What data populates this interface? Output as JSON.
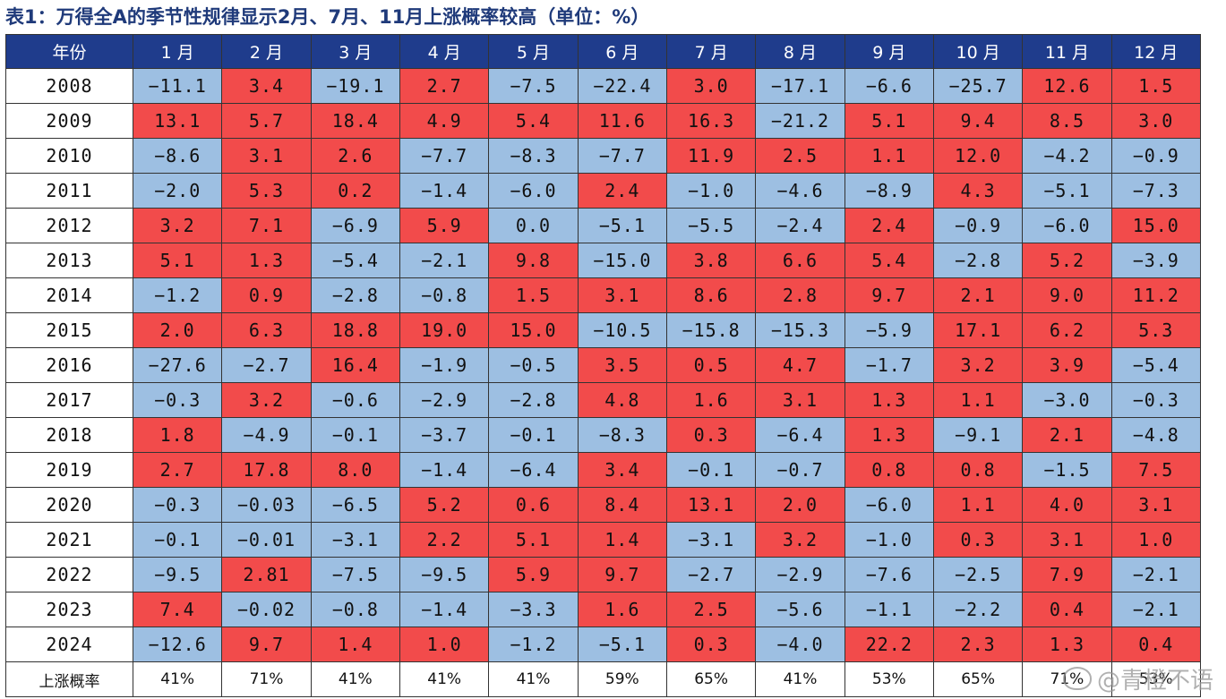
{
  "title": "表1：万得全A的季节性规律显示2月、7月、11月上涨概率较高（单位：%）",
  "header": [
    "年份",
    "1 月",
    "2 月",
    "3 月",
    "4 月",
    "5 月",
    "6 月",
    "7 月",
    "8 月",
    "9 月",
    "10 月",
    "11 月",
    "12 月"
  ],
  "rows": [
    {
      "year": "2008",
      "values": [
        "-11.1",
        "3.4",
        "-19.1",
        "2.7",
        "-7.5",
        "-22.4",
        "3.0",
        "-17.1",
        "-6.6",
        "-25.7",
        "12.6",
        "1.5"
      ]
    },
    {
      "year": "2009",
      "values": [
        "13.1",
        "5.7",
        "18.4",
        "4.9",
        "5.4",
        "11.6",
        "16.3",
        "-21.2",
        "5.1",
        "9.4",
        "8.5",
        "3.0"
      ]
    },
    {
      "year": "2010",
      "values": [
        "-8.6",
        "3.1",
        "2.6",
        "-7.7",
        "-8.3",
        "-7.7",
        "11.9",
        "2.5",
        "1.1",
        "12.0",
        "-4.2",
        "-0.9"
      ]
    },
    {
      "year": "2011",
      "values": [
        "-2.0",
        "5.3",
        "0.2",
        "-1.4",
        "-6.0",
        "2.4",
        "-1.0",
        "-4.6",
        "-8.9",
        "4.3",
        "-5.1",
        "-7.3"
      ]
    },
    {
      "year": "2012",
      "values": [
        "3.2",
        "7.1",
        "-6.9",
        "5.9",
        "0.0",
        "-5.1",
        "-5.5",
        "-2.4",
        "2.4",
        "-0.9",
        "-6.0",
        "15.0"
      ]
    },
    {
      "year": "2013",
      "values": [
        "5.1",
        "1.3",
        "-5.4",
        "-2.1",
        "9.8",
        "-15.0",
        "3.8",
        "6.6",
        "5.4",
        "-2.8",
        "5.2",
        "-3.9"
      ]
    },
    {
      "year": "2014",
      "values": [
        "-1.2",
        "0.9",
        "-2.8",
        "-0.8",
        "1.5",
        "3.1",
        "8.6",
        "2.8",
        "9.7",
        "2.1",
        "9.0",
        "11.2"
      ]
    },
    {
      "year": "2015",
      "values": [
        "2.0",
        "6.3",
        "18.8",
        "19.0",
        "15.0",
        "-10.5",
        "-15.8",
        "-15.3",
        "-5.9",
        "17.1",
        "6.2",
        "5.3"
      ]
    },
    {
      "year": "2016",
      "values": [
        "-27.6",
        "-2.7",
        "16.4",
        "-1.9",
        "-0.5",
        "3.5",
        "0.5",
        "4.7",
        "-1.7",
        "3.2",
        "3.9",
        "-5.4"
      ]
    },
    {
      "year": "2017",
      "values": [
        "-0.3",
        "3.2",
        "-0.6",
        "-2.9",
        "-2.8",
        "4.8",
        "1.6",
        "3.1",
        "1.3",
        "1.1",
        "-3.0",
        "-0.3"
      ]
    },
    {
      "year": "2018",
      "values": [
        "1.8",
        "-4.9",
        "-0.1",
        "-3.7",
        "-0.1",
        "-8.3",
        "0.3",
        "-6.4",
        "1.3",
        "-9.1",
        "2.1",
        "-4.8"
      ]
    },
    {
      "year": "2019",
      "values": [
        "2.7",
        "17.8",
        "8.0",
        "-1.4",
        "-6.4",
        "3.4",
        "-0.1",
        "-0.7",
        "0.8",
        "0.8",
        "-1.5",
        "7.5"
      ]
    },
    {
      "year": "2020",
      "values": [
        "-0.3",
        "-0.03",
        "-6.5",
        "5.2",
        "0.6",
        "8.4",
        "13.1",
        "2.0",
        "-6.0",
        "1.1",
        "4.0",
        "3.1"
      ]
    },
    {
      "year": "2021",
      "values": [
        "-0.1",
        "-0.01",
        "-3.1",
        "2.2",
        "5.1",
        "1.4",
        "-3.1",
        "3.2",
        "-1.0",
        "0.3",
        "3.1",
        "1.0"
      ]
    },
    {
      "year": "2022",
      "values": [
        "-9.5",
        "2.81",
        "-7.5",
        "-9.5",
        "5.9",
        "9.7",
        "-2.7",
        "-2.9",
        "-7.6",
        "-2.5",
        "7.9",
        "-2.1"
      ]
    },
    {
      "year": "2023",
      "values": [
        "7.4",
        "-0.02",
        "-0.8",
        "-1.4",
        "-3.3",
        "1.6",
        "2.5",
        "-5.6",
        "-1.1",
        "-2.2",
        "0.4",
        "-2.1"
      ]
    },
    {
      "year": "2024",
      "values": [
        "-12.6",
        "9.7",
        "1.4",
        "1.0",
        "-1.2",
        "-5.1",
        "0.3",
        "-4.0",
        "22.2",
        "2.3",
        "1.3",
        "0.4"
      ]
    }
  ],
  "probability_row": {
    "label": "上涨概率",
    "values": [
      "41%",
      "71%",
      "41%",
      "41%",
      "41%",
      "59%",
      "65%",
      "41%",
      "53%",
      "65%",
      "71%",
      "53%"
    ]
  },
  "colors": {
    "up": "#f24b4b",
    "down": "#9dbfe2",
    "header_bg": "#1f3c8c"
  },
  "watermark": "@青橙不语"
}
